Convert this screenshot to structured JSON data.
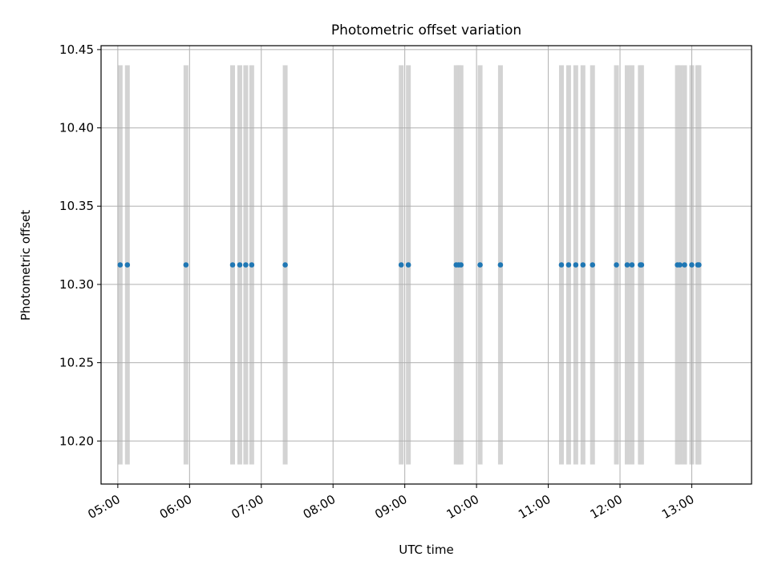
{
  "chart_data": {
    "type": "scatter",
    "title": "Photometric offset variation",
    "xlabel": "UTC time",
    "ylabel": "Photometric offset",
    "x_axis": {
      "kind": "time",
      "xlim": [
        "04:46",
        "13:50"
      ],
      "ticks": [
        "05:00",
        "06:00",
        "07:00",
        "08:00",
        "09:00",
        "10:00",
        "11:00",
        "12:00",
        "13:00"
      ]
    },
    "y_axis": {
      "ylim": [
        10.1725,
        10.4525
      ],
      "ticks": [
        "10.20",
        "10.25",
        "10.30",
        "10.35",
        "10.40",
        "10.45"
      ]
    },
    "grid": true,
    "colors": {
      "point": "#1f77b4",
      "band": "#d3d3d3",
      "grid": "#b0b0b0"
    },
    "band_range": [
      10.185,
      10.44
    ],
    "x": [
      "05:02",
      "05:08",
      "05:57",
      "06:36",
      "06:42",
      "06:47",
      "06:52",
      "07:20",
      "08:57",
      "09:03",
      "09:43",
      "09:45",
      "09:47",
      "10:03",
      "10:20",
      "11:11",
      "11:17",
      "11:23",
      "11:29",
      "11:37",
      "11:57",
      "12:06",
      "12:10",
      "12:17",
      "12:18",
      "12:48",
      "12:50",
      "12:54",
      "13:00",
      "13:05",
      "13:06"
    ],
    "y": [
      10.3125,
      10.3125,
      10.3125,
      10.3125,
      10.3125,
      10.3125,
      10.3125,
      10.3125,
      10.3125,
      10.3125,
      10.3125,
      10.3125,
      10.3125,
      10.3125,
      10.3125,
      10.3125,
      10.3125,
      10.3125,
      10.3125,
      10.3125,
      10.3125,
      10.3125,
      10.3125,
      10.3125,
      10.3125,
      10.3125,
      10.3125,
      10.3125,
      10.3125,
      10.3125,
      10.3125
    ]
  }
}
